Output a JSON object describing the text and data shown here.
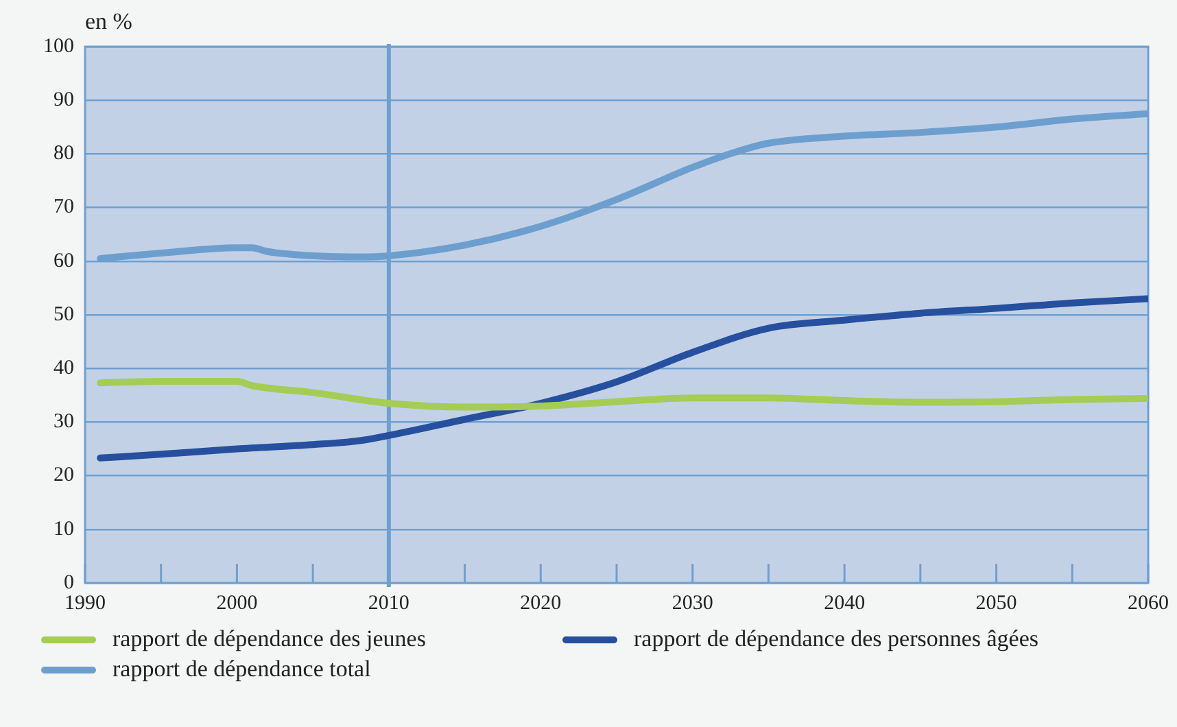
{
  "chart_data": {
    "type": "line",
    "ylabel": "en %",
    "xlim": [
      1990,
      2060
    ],
    "xticks": [
      1990,
      {
        "value": 1995,
        "label": null
      },
      2000,
      {
        "value": 2005,
        "label": null
      },
      2010,
      {
        "value": 2015,
        "label": null
      },
      2020,
      {
        "value": 2025,
        "label": null
      },
      2030,
      {
        "value": 2035,
        "label": null
      },
      2040,
      {
        "value": 2045,
        "label": null
      },
      2050,
      {
        "value": 2055,
        "label": null
      },
      2060
    ],
    "ylim": [
      0,
      100
    ],
    "yticks": [
      0,
      10,
      20,
      30,
      40,
      50,
      60,
      70,
      80,
      90,
      100
    ],
    "grid": "y",
    "legend": "bottom",
    "marker": "none",
    "line_style": "solid",
    "ref_lines": [
      {
        "axis": "x",
        "value": 2010,
        "color": "#6f9fcf"
      }
    ],
    "series": [
      {
        "name": "rapport de dépendance des jeunes",
        "color": "#a5cc54",
        "x": [
          1991,
          1995,
          2000,
          2001,
          2005,
          2010,
          2015,
          2020,
          2025,
          2030,
          2035,
          2040,
          2045,
          2050,
          2055,
          2060
        ],
        "values": [
          37.3,
          37.6,
          37.6,
          36.8,
          35.5,
          33.5,
          32.8,
          33,
          33.8,
          34.5,
          34.5,
          34,
          33.7,
          33.8,
          34.2,
          34.4
        ]
      },
      {
        "name": "rapport de dépendance des personnes âgées",
        "color": "#26509e",
        "x": [
          1991,
          1995,
          2000,
          2005,
          2008,
          2010,
          2015,
          2020,
          2025,
          2030,
          2035,
          2040,
          2045,
          2050,
          2055,
          2060
        ],
        "values": [
          23.3,
          24,
          25,
          25.8,
          26.5,
          27.5,
          30.5,
          33.5,
          37.5,
          43,
          47.5,
          49,
          50.3,
          51.2,
          52.2,
          53
        ]
      },
      {
        "name": "rapport de dépendance total",
        "color": "#6d9fce",
        "x": [
          1991,
          1995,
          2000,
          2001,
          2002,
          2005,
          2008,
          2010,
          2015,
          2020,
          2025,
          2030,
          2033,
          2035,
          2040,
          2045,
          2050,
          2055,
          2060
        ],
        "values": [
          60.5,
          61.5,
          62.5,
          62.5,
          61.8,
          61,
          60.8,
          61,
          63,
          66.5,
          71.5,
          77.5,
          80.5,
          82,
          83.3,
          84,
          85,
          86.5,
          87.5
        ]
      }
    ]
  }
}
